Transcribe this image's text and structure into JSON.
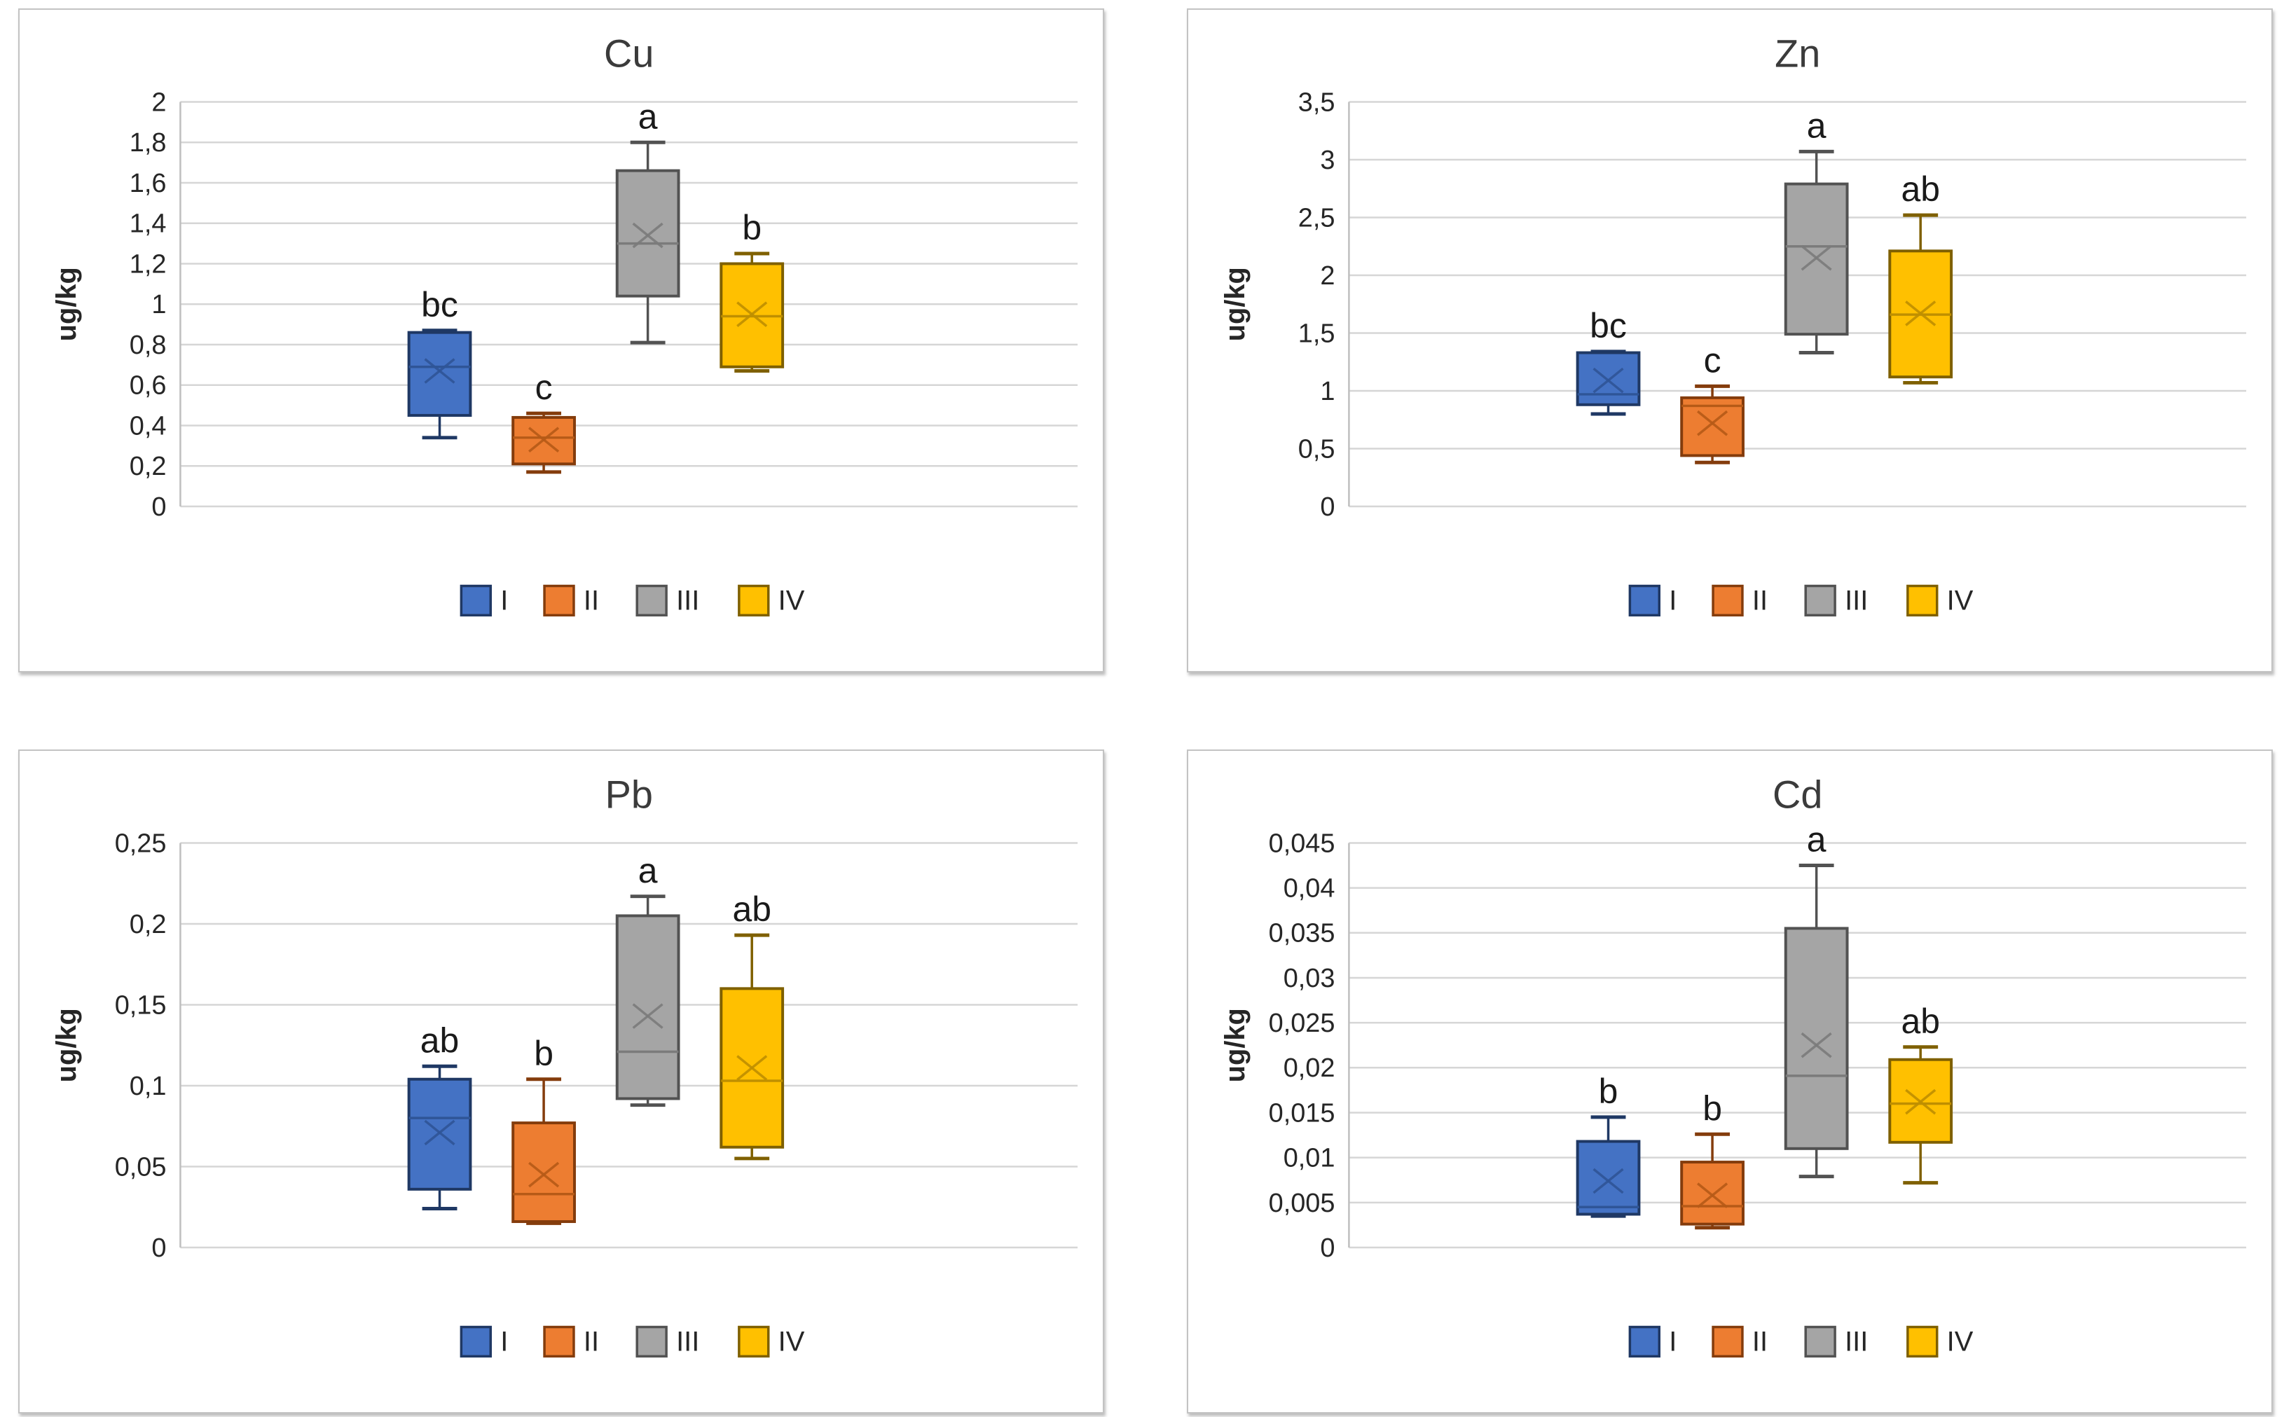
{
  "figure": {
    "ylabel": "ug/kg",
    "legend_labels": [
      "I",
      "II",
      "III",
      "IV"
    ],
    "group_styles": [
      {
        "label": "I",
        "fill": "#4472C4",
        "edge": "#1F3864",
        "accent": "#2F5597"
      },
      {
        "label": "II",
        "fill": "#ED7D31",
        "edge": "#843C0C",
        "accent": "#B65A17"
      },
      {
        "label": "III",
        "fill": "#A5A5A5",
        "edge": "#525252",
        "accent": "#7B7B7B"
      },
      {
        "label": "IV",
        "fill": "#FFC000",
        "edge": "#7F6000",
        "accent": "#BF8F00"
      }
    ],
    "grid_color": "#D6D6D6",
    "axis_line_color": "#BFBFBF",
    "text_color": "#262626",
    "title_color": "#3B3B3B",
    "letter_color": "#1A1A1A"
  },
  "chart_data": [
    {
      "type": "box",
      "title": "Cu",
      "ylabel": "ug/kg",
      "ylim": [
        0,
        2
      ],
      "ystep": 0.2,
      "grid": true,
      "legend_position": "bottom",
      "yticks": [
        {
          "v": 2,
          "label": "2"
        },
        {
          "v": 1.8,
          "label": "1,8"
        },
        {
          "v": 1.6,
          "label": "1,6"
        },
        {
          "v": 1.4,
          "label": "1,4"
        },
        {
          "v": 1.2,
          "label": "1,2"
        },
        {
          "v": 1,
          "label": "1"
        },
        {
          "v": 0.8,
          "label": "0,8"
        },
        {
          "v": 0.6,
          "label": "0,6"
        },
        {
          "v": 0.4,
          "label": "0,4"
        },
        {
          "v": 0.2,
          "label": "0,2"
        },
        {
          "v": 0,
          "label": "0"
        }
      ],
      "groups": [
        "I",
        "II",
        "III",
        "IV"
      ],
      "series": [
        {
          "group": "I",
          "sig_letter": "bc",
          "whisker_low": 0.34,
          "q1": 0.45,
          "median": 0.69,
          "mean": 0.67,
          "q3": 0.86,
          "whisker_high": 0.87
        },
        {
          "group": "II",
          "sig_letter": "c",
          "whisker_low": 0.17,
          "q1": 0.21,
          "median": 0.34,
          "mean": 0.33,
          "q3": 0.44,
          "whisker_high": 0.46
        },
        {
          "group": "III",
          "sig_letter": "a",
          "whisker_low": 0.81,
          "q1": 1.04,
          "median": 1.3,
          "mean": 1.34,
          "q3": 1.66,
          "whisker_high": 1.8
        },
        {
          "group": "IV",
          "sig_letter": "b",
          "whisker_low": 0.67,
          "q1": 0.69,
          "median": 0.94,
          "mean": 0.95,
          "q3": 1.2,
          "whisker_high": 1.25
        }
      ]
    },
    {
      "type": "box",
      "title": "Zn",
      "ylabel": "ug/kg",
      "ylim": [
        0,
        3.5
      ],
      "ystep": 0.5,
      "grid": true,
      "legend_position": "bottom",
      "yticks": [
        {
          "v": 3.5,
          "label": "3,5"
        },
        {
          "v": 3,
          "label": "3"
        },
        {
          "v": 2.5,
          "label": "2,5"
        },
        {
          "v": 2,
          "label": "2"
        },
        {
          "v": 1.5,
          "label": "1,5"
        },
        {
          "v": 1,
          "label": "1"
        },
        {
          "v": 0.5,
          "label": "0,5"
        },
        {
          "v": 0,
          "label": "0"
        }
      ],
      "groups": [
        "I",
        "II",
        "III",
        "IV"
      ],
      "series": [
        {
          "group": "I",
          "sig_letter": "bc",
          "whisker_low": 0.8,
          "q1": 0.88,
          "median": 0.97,
          "mean": 1.09,
          "q3": 1.33,
          "whisker_high": 1.34
        },
        {
          "group": "II",
          "sig_letter": "c",
          "whisker_low": 0.38,
          "q1": 0.44,
          "median": 0.87,
          "mean": 0.72,
          "q3": 0.94,
          "whisker_high": 1.04
        },
        {
          "group": "III",
          "sig_letter": "a",
          "whisker_low": 1.33,
          "q1": 1.49,
          "median": 2.25,
          "mean": 2.15,
          "q3": 2.79,
          "whisker_high": 3.07
        },
        {
          "group": "IV",
          "sig_letter": "ab",
          "whisker_low": 1.07,
          "q1": 1.12,
          "median": 1.66,
          "mean": 1.67,
          "q3": 2.21,
          "whisker_high": 2.52
        }
      ]
    },
    {
      "type": "box",
      "title": "Pb",
      "ylabel": "ug/kg",
      "ylim": [
        0,
        0.25
      ],
      "ystep": 0.05,
      "grid": true,
      "legend_position": "bottom",
      "yticks": [
        {
          "v": 0.25,
          "label": "0,25"
        },
        {
          "v": 0.2,
          "label": "0,2"
        },
        {
          "v": 0.15,
          "label": "0,15"
        },
        {
          "v": 0.1,
          "label": "0,1"
        },
        {
          "v": 0.05,
          "label": "0,05"
        },
        {
          "v": 0,
          "label": "0"
        }
      ],
      "groups": [
        "I",
        "II",
        "III",
        "IV"
      ],
      "series": [
        {
          "group": "I",
          "sig_letter": "ab",
          "whisker_low": 0.024,
          "q1": 0.036,
          "median": 0.08,
          "mean": 0.071,
          "q3": 0.104,
          "whisker_high": 0.112
        },
        {
          "group": "II",
          "sig_letter": "b",
          "whisker_low": 0.015,
          "q1": 0.016,
          "median": 0.033,
          "mean": 0.045,
          "q3": 0.077,
          "whisker_high": 0.104
        },
        {
          "group": "III",
          "sig_letter": "a",
          "whisker_low": 0.088,
          "q1": 0.092,
          "median": 0.121,
          "mean": 0.143,
          "q3": 0.205,
          "whisker_high": 0.217
        },
        {
          "group": "IV",
          "sig_letter": "ab",
          "whisker_low": 0.055,
          "q1": 0.062,
          "median": 0.103,
          "mean": 0.111,
          "q3": 0.16,
          "whisker_high": 0.193
        }
      ]
    },
    {
      "type": "box",
      "title": "Cd",
      "ylabel": "ug/kg",
      "ylim": [
        0,
        0.045
      ],
      "ystep": 0.005,
      "grid": true,
      "legend_position": "bottom",
      "yticks": [
        {
          "v": 0.045,
          "label": "0,045"
        },
        {
          "v": 0.04,
          "label": "0,04"
        },
        {
          "v": 0.035,
          "label": "0,035"
        },
        {
          "v": 0.03,
          "label": "0,03"
        },
        {
          "v": 0.025,
          "label": "0,025"
        },
        {
          "v": 0.02,
          "label": "0,02"
        },
        {
          "v": 0.015,
          "label": "0,015"
        },
        {
          "v": 0.01,
          "label": "0,01"
        },
        {
          "v": 0.005,
          "label": "0,005"
        },
        {
          "v": 0,
          "label": "0"
        }
      ],
      "groups": [
        "I",
        "II",
        "III",
        "IV"
      ],
      "series": [
        {
          "group": "I",
          "sig_letter": "b",
          "whisker_low": 0.0035,
          "q1": 0.0037,
          "median": 0.0045,
          "mean": 0.0074,
          "q3": 0.0118,
          "whisker_high": 0.0145
        },
        {
          "group": "II",
          "sig_letter": "b",
          "whisker_low": 0.0022,
          "q1": 0.0026,
          "median": 0.0046,
          "mean": 0.0058,
          "q3": 0.0095,
          "whisker_high": 0.0126
        },
        {
          "group": "III",
          "sig_letter": "a",
          "whisker_low": 0.0079,
          "q1": 0.011,
          "median": 0.0191,
          "mean": 0.0225,
          "q3": 0.0355,
          "whisker_high": 0.0425
        },
        {
          "group": "IV",
          "sig_letter": "ab",
          "whisker_low": 0.0072,
          "q1": 0.0117,
          "median": 0.016,
          "mean": 0.0162,
          "q3": 0.0209,
          "whisker_high": 0.0223
        }
      ]
    }
  ]
}
